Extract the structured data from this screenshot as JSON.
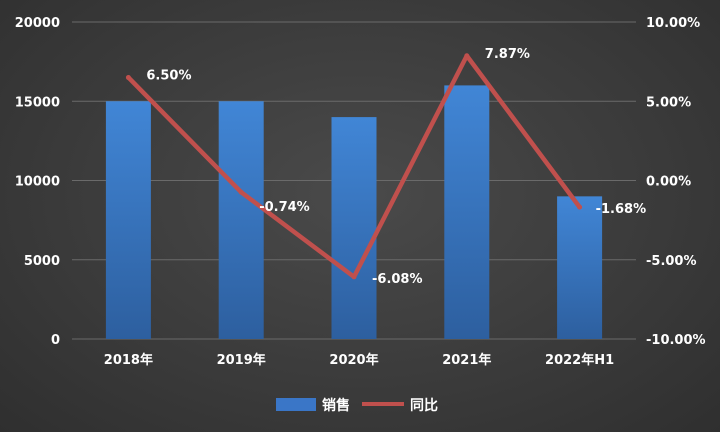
{
  "chart_data": {
    "type": "bar",
    "categories": [
      "2018年",
      "2019年",
      "2020年",
      "2021年",
      "2022年H1"
    ],
    "series": [
      {
        "name": "销售",
        "type": "bar",
        "axis": "left",
        "color": "#3a76c7",
        "values": [
          15000,
          15000,
          14000,
          16000,
          9000
        ]
      },
      {
        "name": "同比",
        "type": "line",
        "axis": "right",
        "color": "#c0504d",
        "values": [
          6.5,
          -0.74,
          -6.08,
          7.87,
          -1.68
        ],
        "labels": [
          "6.50%",
          "-0.74%",
          "-6.08%",
          "7.87%",
          "-1.68%"
        ]
      }
    ],
    "y_left": {
      "min": 0,
      "max": 20000,
      "ticks": [
        0,
        5000,
        10000,
        15000,
        20000
      ],
      "tick_labels": [
        "0",
        "5000",
        "10000",
        "15000",
        "20000"
      ]
    },
    "y_right": {
      "min": -10,
      "max": 10,
      "ticks": [
        -10,
        -5,
        0,
        5,
        10
      ],
      "tick_labels": [
        "-10.00%",
        "-5.00%",
        "0.00%",
        "5.00%",
        "10.00%"
      ]
    },
    "grid": true,
    "legend": "bottom"
  }
}
